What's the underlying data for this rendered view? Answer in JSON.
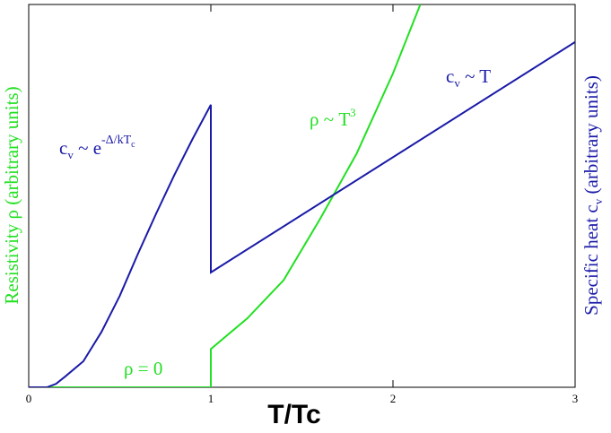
{
  "chart_data": {
    "type": "line",
    "xlabel": "T/Tc",
    "ylabel": "Resistivity ρ (arbitrary units)",
    "y2label": [
      "Specific heat c",
      "v",
      " (arbitrary units)"
    ],
    "xlim": [
      0,
      3
    ],
    "xticks": [
      0,
      1,
      2,
      3
    ],
    "ylim": [
      0,
      10
    ],
    "y2lim": [
      0,
      10
    ],
    "series": [
      {
        "name": "ρ",
        "color": "#22e022",
        "axis": "y",
        "x": [
          0,
          1,
          1,
          1.2,
          1.4,
          1.6,
          1.8,
          2.0,
          2.15
        ],
        "values": [
          0,
          0,
          1.0,
          1.8,
          2.8,
          4.4,
          6.1,
          8.2,
          10
        ]
      },
      {
        "name": "c",
        "color": "#1a1aa8",
        "axis": "y2",
        "x": [
          0,
          0.1,
          0.15,
          0.2,
          0.3,
          0.4,
          0.5,
          0.6,
          0.7,
          0.8,
          0.9,
          1.0,
          1.0,
          3.0
        ],
        "values": [
          0,
          0,
          0.09,
          0.28,
          0.68,
          1.45,
          2.39,
          3.49,
          4.54,
          5.55,
          6.49,
          7.38,
          3.0,
          9.02
        ]
      }
    ],
    "annotations": [
      {
        "text": [
          "c",
          "v",
          " ~ e",
          "-Δ/kT",
          "c"
        ]
      },
      {
        "text": [
          "ρ ~ T",
          "3"
        ]
      },
      {
        "text": [
          "c",
          "v",
          " ~ T"
        ]
      },
      {
        "text": [
          "ρ = 0"
        ]
      }
    ]
  }
}
